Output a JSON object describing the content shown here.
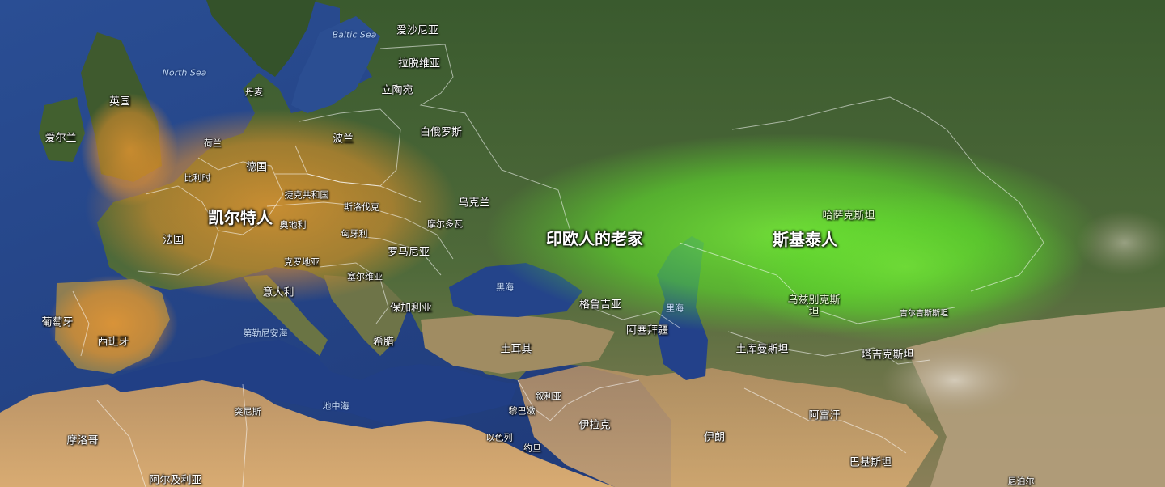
{
  "regions": {
    "celts": "凯尔特人",
    "pie_homeland": "印欧人的老家",
    "scythians": "斯基泰人"
  },
  "seas": {
    "baltic": "Baltic Sea",
    "north": "North Sea",
    "black": "黑海",
    "caspian": "里海",
    "mediterranean": "地中海",
    "tyrrhenian": "第勒尼安海"
  },
  "countries": {
    "estonia": "爱沙尼亚",
    "latvia": "拉脱维亚",
    "lithuania": "立陶宛",
    "belarus": "白俄罗斯",
    "poland": "波兰",
    "denmark": "丹麦",
    "uk": "英国",
    "ireland": "爱尔兰",
    "netherlands": "荷兰",
    "belgium": "比利时",
    "germany": "德国",
    "czech": "捷克共和国",
    "slovakia": "斯洛伐克",
    "austria": "奥地利",
    "hungary": "匈牙利",
    "moldova": "摩尔多瓦",
    "ukraine": "乌克兰",
    "france": "法国",
    "romania": "罗马尼亚",
    "croatia": "克罗地亚",
    "serbia": "塞尔维亚",
    "italy": "意大利",
    "bulgaria": "保加利亚",
    "portugal": "葡萄牙",
    "spain": "西班牙",
    "greece": "希腊",
    "turkey": "土耳其",
    "georgia": "格鲁吉亚",
    "azerbaijan": "阿塞拜疆",
    "kazakhstan": "哈萨克斯坦",
    "uzbekistan": "乌兹别克斯坦",
    "kyrgyzstan": "吉尔吉斯斯坦",
    "turkmenistan": "土库曼斯坦",
    "tajikistan": "塔吉克斯坦",
    "syria": "叙利亚",
    "lebanon": "黎巴嫩",
    "israel": "以色列",
    "jordan": "约旦",
    "iraq": "伊拉克",
    "iran": "伊朗",
    "afghanistan": "阿富汗",
    "pakistan": "巴基斯坦",
    "nepal": "尼泊尔",
    "tunisia": "突尼斯",
    "morocco": "摩洛哥",
    "algeria": "阿尔及利亚"
  },
  "colors": {
    "ocean": "#243f7c",
    "celtic_overlay": "#e8922c",
    "steppe_overlay": "#5ee02a",
    "land_forest": "#3d5a2c",
    "desert": "#c9a06a"
  }
}
